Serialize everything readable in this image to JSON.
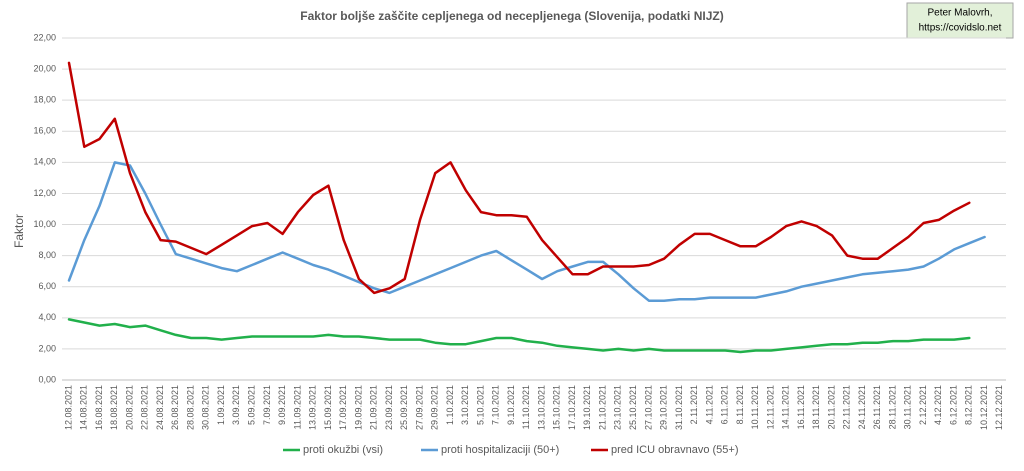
{
  "chart_data": {
    "type": "line",
    "title": "Faktor boljše zaščite cepljenega od necepljenega (Slovenija, podatki NIJZ)",
    "credit": [
      "Peter Malovrh,",
      "https://covidslo.net"
    ],
    "y_label": "Faktor",
    "categories": [
      "12.08.2021",
      "14.08.2021",
      "16.08.2021",
      "18.08.2021",
      "20.08.2021",
      "22.08.2021",
      "24.08.2021",
      "26.08.2021",
      "28.08.2021",
      "30.08.2021",
      "1.09.2021",
      "3.09.2021",
      "5.09.2021",
      "7.09.2021",
      "9.09.2021",
      "11.09.2021",
      "13.09.2021",
      "15.09.2021",
      "17.09.2021",
      "19.09.2021",
      "21.09.2021",
      "23.09.2021",
      "25.09.2021",
      "27.09.2021",
      "29.09.2021",
      "1.10.2021",
      "3.10.2021",
      "5.10.2021",
      "7.10.2021",
      "9.10.2021",
      "11.10.2021",
      "13.10.2021",
      "15.10.2021",
      "17.10.2021",
      "19.10.2021",
      "21.10.2021",
      "23.10.2021",
      "25.10.2021",
      "27.10.2021",
      "29.10.2021",
      "31.10.2021",
      "2.11.2021",
      "4.11.2021",
      "6.11.2021",
      "8.11.2021",
      "10.11.2021",
      "12.11.2021",
      "14.11.2021",
      "16.11.2021",
      "18.11.2021",
      "20.11.2021",
      "22.11.2021",
      "24.11.2021",
      "26.11.2021",
      "28.11.2021",
      "30.11.2021",
      "2.12.2021",
      "4.12.2021",
      "6.12.2021",
      "8.12.2021",
      "10.12.2021",
      "12.12.2021"
    ],
    "series": [
      {
        "name": "proti okužbi (vsi)",
        "color": "#21b04b",
        "values": [
          3.9,
          3.7,
          3.5,
          3.6,
          3.4,
          3.5,
          3.2,
          2.9,
          2.7,
          2.7,
          2.6,
          2.7,
          2.8,
          2.8,
          2.8,
          2.8,
          2.8,
          2.9,
          2.8,
          2.8,
          2.7,
          2.6,
          2.6,
          2.6,
          2.4,
          2.3,
          2.3,
          2.5,
          2.7,
          2.7,
          2.5,
          2.4,
          2.2,
          2.1,
          2.0,
          1.9,
          2.0,
          1.9,
          2.0,
          1.9,
          1.9,
          1.9,
          1.9,
          1.9,
          1.8,
          1.9,
          1.9,
          2.0,
          2.1,
          2.2,
          2.3,
          2.3,
          2.4,
          2.4,
          2.5,
          2.5,
          2.6,
          2.6,
          2.6,
          2.7,
          null,
          null
        ]
      },
      {
        "name": "proti hospitalizaciji (50+)",
        "color": "#5b9bd5",
        "values": [
          6.4,
          9.0,
          11.2,
          14.0,
          13.8,
          12.0,
          10.0,
          8.1,
          7.8,
          7.5,
          7.2,
          7.0,
          7.4,
          7.8,
          8.2,
          7.8,
          7.4,
          7.1,
          6.7,
          6.3,
          5.9,
          5.6,
          6.0,
          6.4,
          6.8,
          7.2,
          7.6,
          8.0,
          8.3,
          7.7,
          7.1,
          6.5,
          7.0,
          7.3,
          7.6,
          7.6,
          6.8,
          5.9,
          5.1,
          5.1,
          5.2,
          5.2,
          5.3,
          5.3,
          5.3,
          5.3,
          5.5,
          5.7,
          6.0,
          6.2,
          6.4,
          6.6,
          6.8,
          6.9,
          7.0,
          7.1,
          7.3,
          7.8,
          8.4,
          8.8,
          9.2,
          null
        ]
      },
      {
        "name": "pred ICU obravnavo (55+)",
        "color": "#c00000",
        "values": [
          20.4,
          15.0,
          15.5,
          16.8,
          13.3,
          10.8,
          9.0,
          8.9,
          8.5,
          8.1,
          8.7,
          9.3,
          9.9,
          10.1,
          9.4,
          10.8,
          11.9,
          12.5,
          9.0,
          6.5,
          5.6,
          5.9,
          6.5,
          10.3,
          13.3,
          14.0,
          12.2,
          10.8,
          10.6,
          10.6,
          10.5,
          9.0,
          7.9,
          6.8,
          6.8,
          7.3,
          7.3,
          7.3,
          7.4,
          7.8,
          8.7,
          9.4,
          9.4,
          9.0,
          8.6,
          8.6,
          9.2,
          9.9,
          10.2,
          9.9,
          9.3,
          8.0,
          7.8,
          7.8,
          8.5,
          9.2,
          10.1,
          10.3,
          10.9,
          11.4,
          null,
          null
        ]
      }
    ],
    "ylim": [
      0,
      22
    ],
    "yticks": [
      {
        "value": 0,
        "label": "0,00"
      },
      {
        "value": 2,
        "label": "2,00"
      },
      {
        "value": 4,
        "label": "4,00"
      },
      {
        "value": 6,
        "label": "6,00"
      },
      {
        "value": 8,
        "label": "8,00"
      },
      {
        "value": 10,
        "label": "10,00"
      },
      {
        "value": 12,
        "label": "12,00"
      },
      {
        "value": 14,
        "label": "14,00"
      },
      {
        "value": 16,
        "label": "16,00"
      },
      {
        "value": 18,
        "label": "18,00"
      },
      {
        "value": 20,
        "label": "20,00"
      },
      {
        "value": 22,
        "label": "22,00"
      }
    ],
    "grid": true,
    "legend": "bottom"
  }
}
